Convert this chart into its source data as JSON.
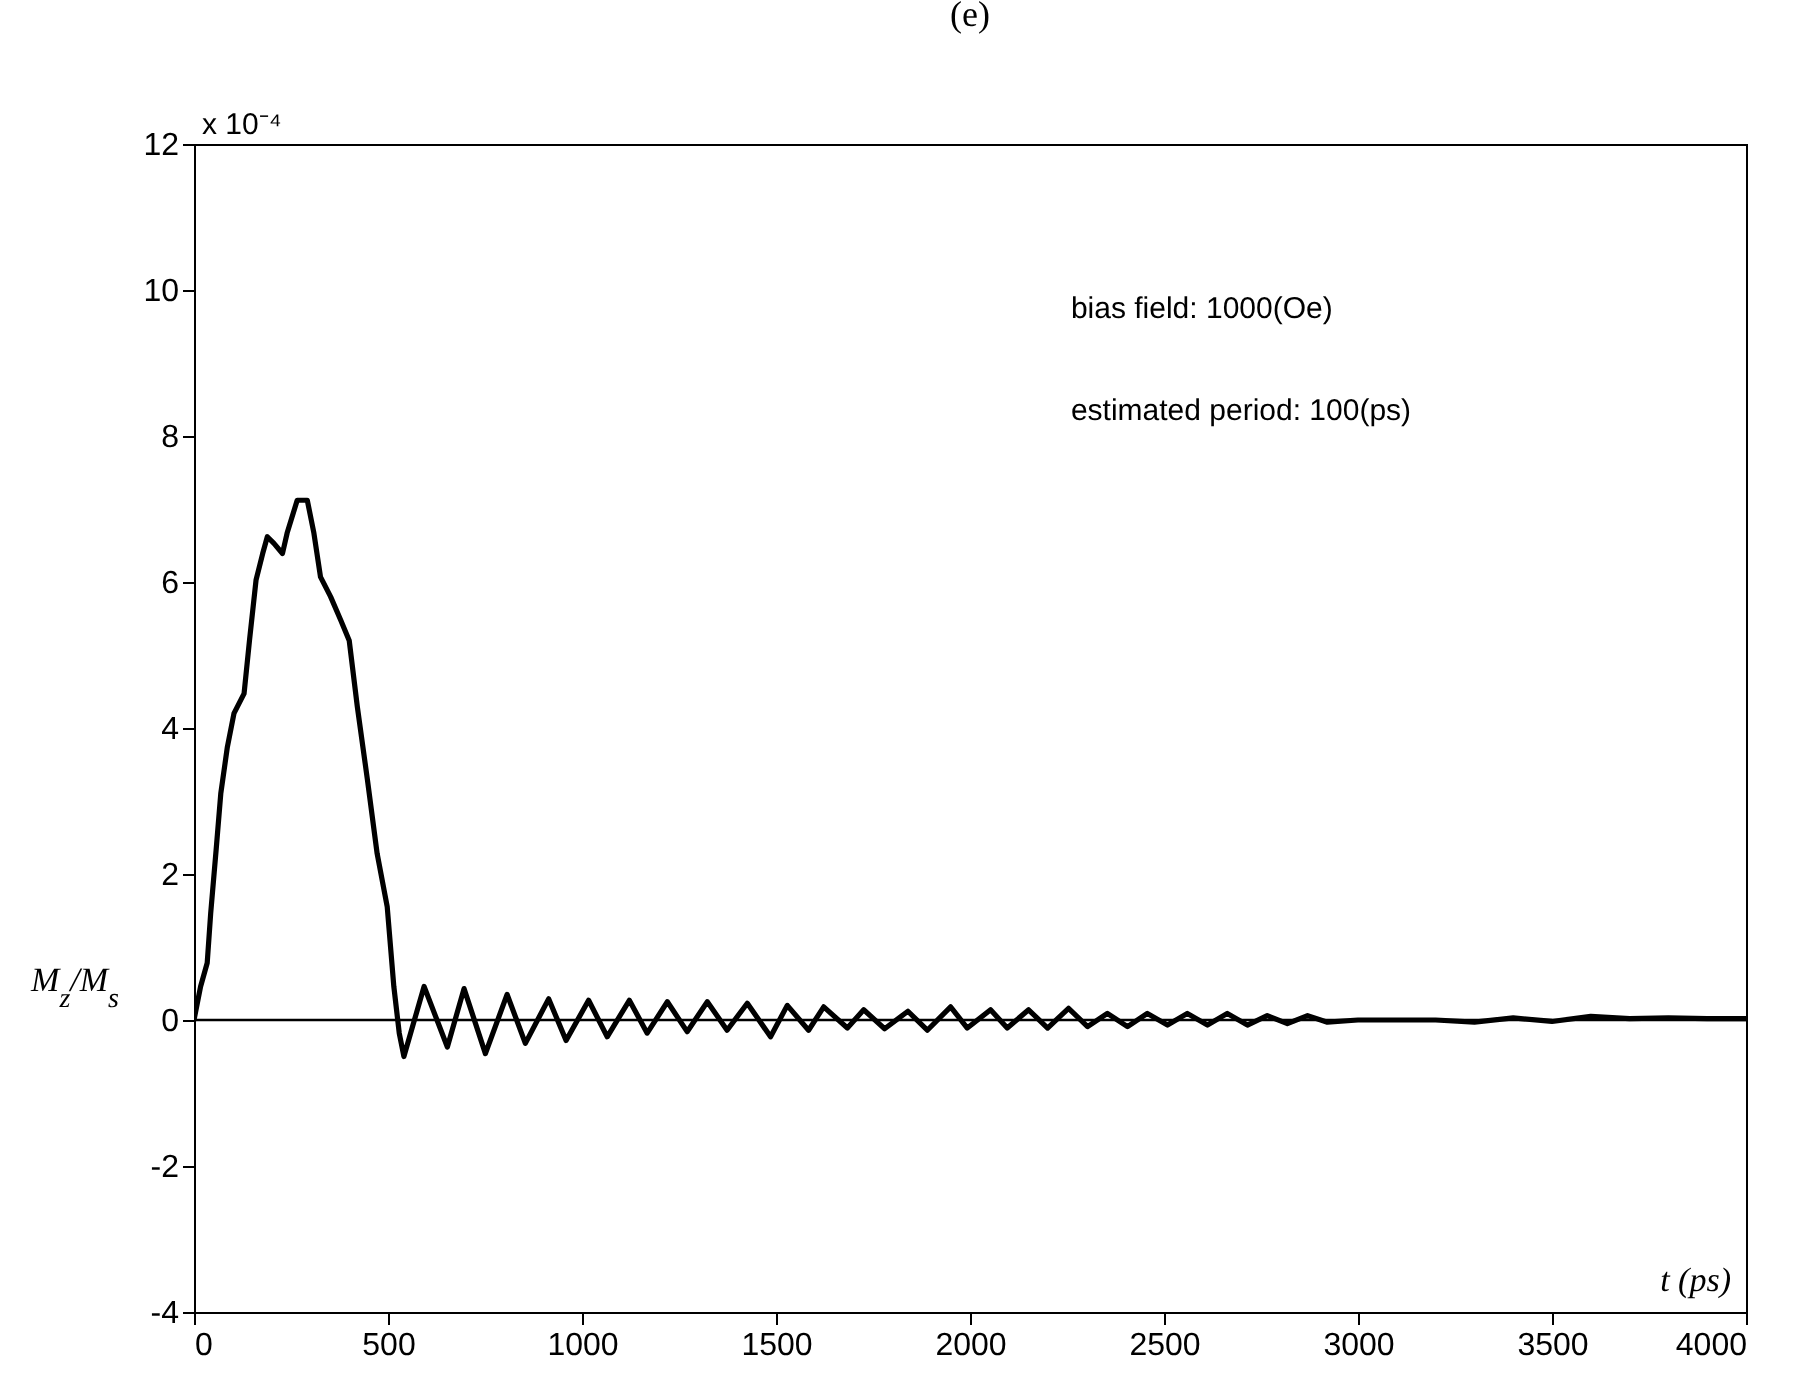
{
  "chart_data": {
    "type": "line",
    "title": "(e)",
    "xlabel": "t (ps)",
    "ylabel": "M$_{z}$/M$_{s}$",
    "annotations": [
      "x 10⁻⁴",
      "bias field: 1000(Oe)",
      "estimated period: 100(ps)"
    ],
    "xlim": [
      0,
      4000
    ],
    "xticks": [
      0,
      500,
      1000,
      1500,
      2000,
      2500,
      3000,
      3500,
      4000
    ],
    "ylim": [
      -4,
      12
    ],
    "yticks": [
      -4,
      -2,
      0,
      2,
      4,
      6,
      8,
      10,
      12
    ],
    "grid": false,
    "line_style": "solid",
    "marker": "none",
    "ref_lines": [
      {
        "axis": "y",
        "value": 0,
        "color": "#000000"
      }
    ],
    "series": [
      {
        "color": "#000000",
        "x": [
          0,
          17,
          34,
          43,
          57,
          69,
          86,
          103,
          129,
          143,
          160,
          177,
          189,
          206,
          228,
          240,
          266,
          292,
          309,
          326,
          352,
          378,
          400,
          421,
          447,
          472,
          498,
          515,
          529,
          541,
          593,
          653,
          696,
          751,
          807,
          854,
          914,
          959,
          1017,
          1065,
          1122,
          1168,
          1220,
          1271,
          1323,
          1374,
          1426,
          1486,
          1529,
          1584,
          1623,
          1684,
          1726,
          1780,
          1840,
          1890,
          1950,
          1993,
          2053,
          2096,
          2151,
          2200,
          2254,
          2303,
          2354,
          2406,
          2457,
          2509,
          2560,
          2612,
          2663,
          2715,
          2766,
          2818,
          2870,
          2921,
          3000,
          3200,
          3300,
          3400,
          3500,
          3600,
          3700,
          3800,
          3900,
          4000
        ],
        "values": [
          0,
          0.46,
          0.78,
          1.46,
          2.33,
          3.1,
          3.74,
          4.2,
          4.47,
          5.2,
          6.03,
          6.39,
          6.62,
          6.53,
          6.39,
          6.67,
          7.12,
          7.12,
          6.67,
          6.07,
          5.8,
          5.48,
          5.2,
          4.29,
          3.29,
          2.28,
          1.55,
          0.46,
          -0.18,
          -0.5,
          0.46,
          -0.37,
          0.43,
          -0.46,
          0.35,
          -0.32,
          0.29,
          -0.28,
          0.27,
          -0.23,
          0.27,
          -0.18,
          0.25,
          -0.16,
          0.25,
          -0.14,
          0.23,
          -0.23,
          0.2,
          -0.14,
          0.18,
          -0.11,
          0.14,
          -0.12,
          0.12,
          -0.14,
          0.18,
          -0.11,
          0.14,
          -0.11,
          0.14,
          -0.11,
          0.16,
          -0.09,
          0.09,
          -0.09,
          0.09,
          -0.07,
          0.09,
          -0.07,
          0.09,
          -0.07,
          0.06,
          -0.05,
          0.06,
          -0.03,
          0,
          0,
          -0.03,
          0.03,
          -0.02,
          0.05,
          0.02,
          0.03,
          0.02,
          0.02
        ]
      }
    ]
  }
}
